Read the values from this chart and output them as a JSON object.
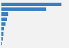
{
  "values": [
    1000000,
    750000,
    120000,
    90000,
    65000,
    50000,
    38000,
    25000,
    8000
  ],
  "bar_color": "#3a7fc1",
  "background_color": "#f2f2f2",
  "plot_background": "#f2f2f2",
  "grid_color": "#ffffff",
  "ylim": [
    -0.6,
    8.6
  ],
  "xlim": [
    0,
    1100000
  ]
}
